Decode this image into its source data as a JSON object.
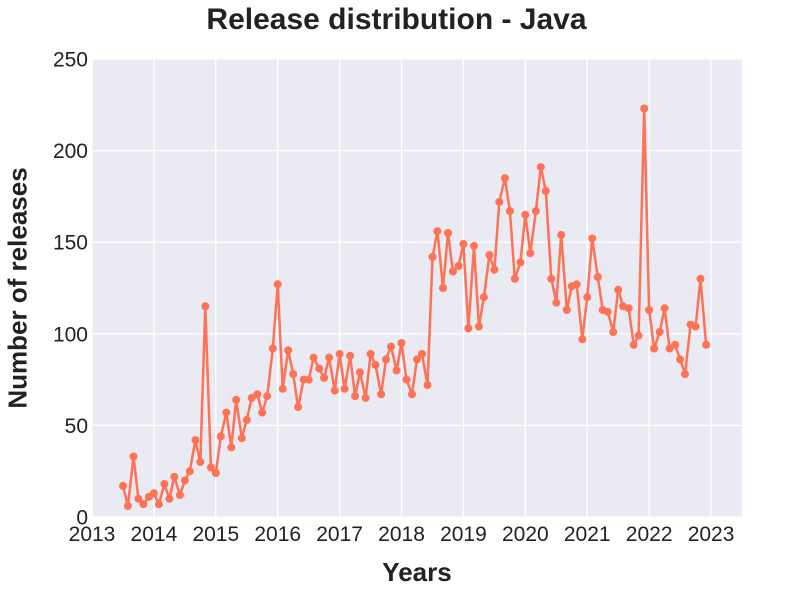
{
  "chart_data": {
    "type": "line",
    "title": "Release distribution - Java",
    "xlabel": "Years",
    "ylabel": "Number of releases",
    "xlim": [
      2013.0,
      2023.5
    ],
    "ylim": [
      0,
      250
    ],
    "xticks": [
      "2013",
      "2014",
      "2015",
      "2016",
      "2017",
      "2018",
      "2019",
      "2020",
      "2021",
      "2022",
      "2023"
    ],
    "yticks": [
      "0",
      "50",
      "100",
      "150",
      "200",
      "250"
    ],
    "grid": true,
    "series": [
      {
        "name": "Java",
        "color": "#ff7256",
        "x": [
          2013.5,
          2013.58,
          2013.67,
          2013.75,
          2013.83,
          2013.92,
          2014.0,
          2014.08,
          2014.17,
          2014.25,
          2014.33,
          2014.42,
          2014.5,
          2014.58,
          2014.67,
          2014.75,
          2014.83,
          2014.92,
          2015.0,
          2015.08,
          2015.17,
          2015.25,
          2015.33,
          2015.42,
          2015.5,
          2015.58,
          2015.67,
          2015.75,
          2015.83,
          2015.92,
          2016.0,
          2016.08,
          2016.17,
          2016.25,
          2016.33,
          2016.42,
          2016.5,
          2016.58,
          2016.67,
          2016.75,
          2016.83,
          2016.92,
          2017.0,
          2017.08,
          2017.17,
          2017.25,
          2017.33,
          2017.42,
          2017.5,
          2017.58,
          2017.67,
          2017.75,
          2017.83,
          2017.92,
          2018.0,
          2018.08,
          2018.17,
          2018.25,
          2018.33,
          2018.42,
          2018.5,
          2018.58,
          2018.67,
          2018.75,
          2018.83,
          2018.92,
          2019.0,
          2019.08,
          2019.17,
          2019.25,
          2019.33,
          2019.42,
          2019.5,
          2019.58,
          2019.67,
          2019.75,
          2019.83,
          2019.92,
          2020.0,
          2020.08,
          2020.17,
          2020.25,
          2020.33,
          2020.42,
          2020.5,
          2020.58,
          2020.67,
          2020.75,
          2020.83,
          2020.92,
          2021.0,
          2021.08,
          2021.17,
          2021.25,
          2021.33,
          2021.42,
          2021.5,
          2021.58,
          2021.67,
          2021.75,
          2021.83,
          2021.92,
          2022.0,
          2022.08,
          2022.17,
          2022.25,
          2022.33,
          2022.42,
          2022.5,
          2022.58,
          2022.67,
          2022.75,
          2022.83,
          2022.92
        ],
        "y": [
          17,
          6,
          33,
          10,
          7,
          11,
          13,
          7,
          18,
          10,
          22,
          12,
          20,
          25,
          42,
          30,
          115,
          27,
          24,
          44,
          57,
          38,
          64,
          43,
          53,
          65,
          67,
          57,
          66,
          92,
          127,
          70,
          91,
          78,
          60,
          75,
          75,
          87,
          81,
          76,
          87,
          69,
          89,
          70,
          88,
          66,
          79,
          65,
          89,
          83,
          67,
          86,
          93,
          80,
          95,
          75,
          67,
          86,
          89,
          72,
          142,
          156,
          125,
          155,
          134,
          137,
          149,
          103,
          148,
          104,
          120,
          143,
          135,
          172,
          185,
          167,
          130,
          139,
          165,
          144,
          167,
          191,
          178,
          130,
          117,
          154,
          113,
          126,
          127,
          97,
          120,
          152,
          131,
          113,
          112,
          101,
          124,
          115,
          114,
          94,
          99,
          223,
          113,
          92,
          101,
          114,
          92,
          94,
          86,
          78,
          105,
          104,
          130,
          94
        ]
      }
    ]
  }
}
